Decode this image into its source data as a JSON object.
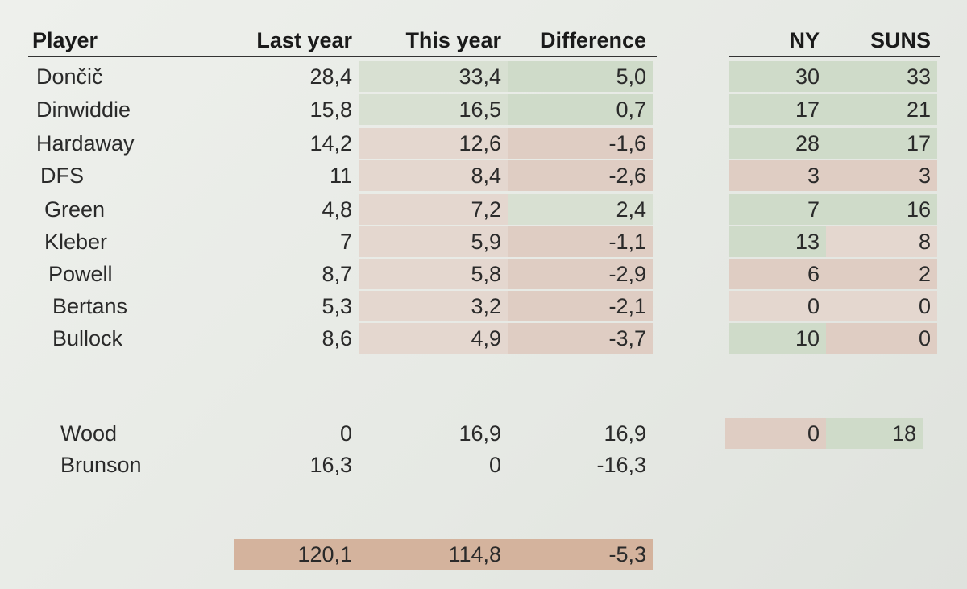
{
  "table": {
    "headers": [
      "Player",
      "Last year",
      "This year",
      "Difference"
    ],
    "rows": [
      [
        "Dončič",
        "28,4",
        "33,4",
        "5,0"
      ],
      [
        "Dinwiddie",
        "15,8",
        "16,5",
        "0,7"
      ],
      [
        "Hardaway",
        "14,2",
        "12,6",
        "-1,6"
      ],
      [
        "DFS",
        "11",
        "8,4",
        "-2,6"
      ],
      [
        "Green",
        "4,8",
        "7,2",
        "2,4"
      ],
      [
        "Kleber",
        "7",
        "5,9",
        "-1,1"
      ],
      [
        "Powell",
        "8,7",
        "5,8",
        "-2,9"
      ],
      [
        "Bertans",
        "5,3",
        "3,2",
        "-2,1"
      ],
      [
        "Bullock",
        "8,6",
        "4,9",
        "-3,7"
      ]
    ],
    "extra_rows": [
      [
        "Wood",
        "0",
        "16,9",
        "16,9"
      ],
      [
        "Brunson",
        "16,3",
        "0",
        "-16,3"
      ]
    ],
    "totals": [
      "120,1",
      "114,8",
      "-5,3"
    ]
  },
  "side_table": {
    "headers": [
      "NY",
      "SUNS"
    ],
    "rows": [
      [
        "30",
        "33"
      ],
      [
        "17",
        "21"
      ],
      [
        "28",
        "17"
      ],
      [
        "3",
        "3"
      ],
      [
        "7",
        "16"
      ],
      [
        "13",
        "8"
      ],
      [
        "6",
        "2"
      ],
      [
        "0",
        "0"
      ],
      [
        "10",
        "0"
      ]
    ],
    "extra_row": [
      "0",
      "18"
    ]
  }
}
